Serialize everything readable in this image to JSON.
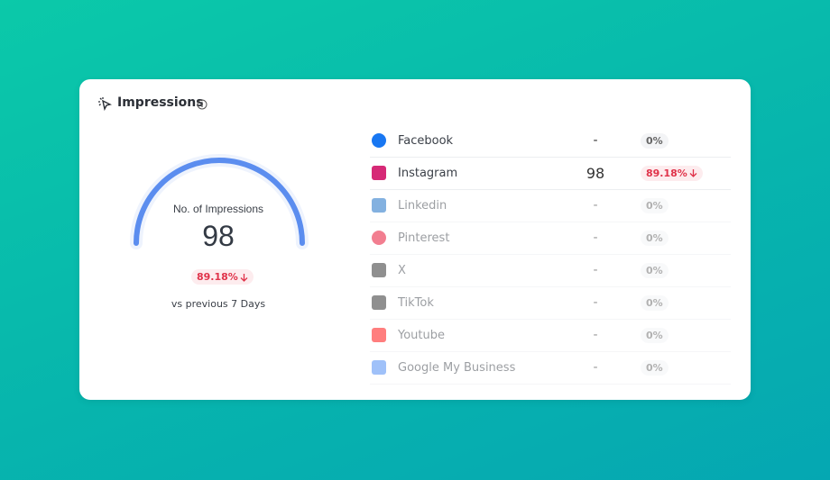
{
  "header": {
    "title": "Impressions"
  },
  "summary": {
    "label": "No. of Impressions",
    "value": 98,
    "change": "89.18%",
    "comparison": "vs previous 7 Days"
  },
  "table": {
    "rows": [
      {
        "name": "Facebook",
        "value": "-",
        "change": "0%"
      },
      {
        "name": "Instagram",
        "value": 98,
        "change": "89.18%"
      },
      {
        "name": "Linkedin",
        "value": "-",
        "change": "0%"
      },
      {
        "name": "Pinterest",
        "value": "-",
        "change": "0%"
      },
      {
        "name": "X",
        "value": "-",
        "change": "0%"
      },
      {
        "name": "TikTok",
        "value": "-",
        "change": "0%"
      },
      {
        "name": "Youtube",
        "value": "-",
        "change": "0%"
      },
      {
        "name": "Google My Business",
        "value": "-",
        "change": "0%"
      }
    ]
  }
}
